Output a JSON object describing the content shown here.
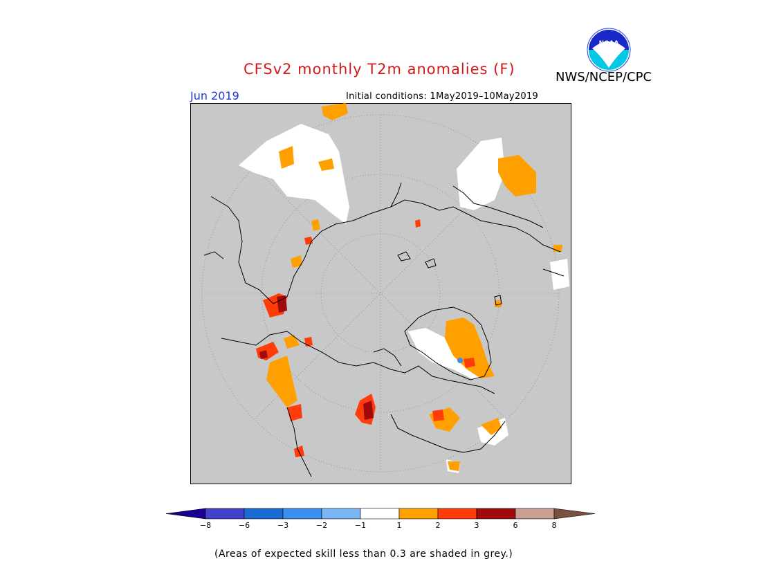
{
  "title": "CFSv2 monthly T2m anomalies (F)",
  "agency": "NWS/NCEP/CPC",
  "logo_text": "NOAA",
  "month": "Jun 2019",
  "initial_conditions": "Initial conditions: 1May2019–10May2019",
  "footnote": "(Areas of expected skill less than 0.3 are shaded in grey.)",
  "colorbar": {
    "bins": [
      {
        "color": "#1a0090"
      },
      {
        "color": "#4040c8",
        "label": "−8"
      },
      {
        "color": "#1a6ad6",
        "label": "−6"
      },
      {
        "color": "#3c8ef0",
        "label": "−3"
      },
      {
        "color": "#7ab6f5",
        "label": "−2"
      },
      {
        "color": "#ffffff",
        "label": "−1"
      },
      {
        "color": "#ffa000",
        "label": "1"
      },
      {
        "color": "#ff3c0a",
        "label": "2"
      },
      {
        "color": "#a00a0a",
        "label": "3"
      },
      {
        "color": "#c8a090",
        "label": "6"
      },
      {
        "color": "#7a5040",
        "label": "8"
      }
    ]
  },
  "colors": {
    "skill_grey": "#c8c8c8",
    "near_normal": "#ffffff",
    "warm1": "#ffa000",
    "warm2": "#ff3c0a",
    "warm3": "#a00a0a",
    "cool": "#3c8ef0"
  }
}
